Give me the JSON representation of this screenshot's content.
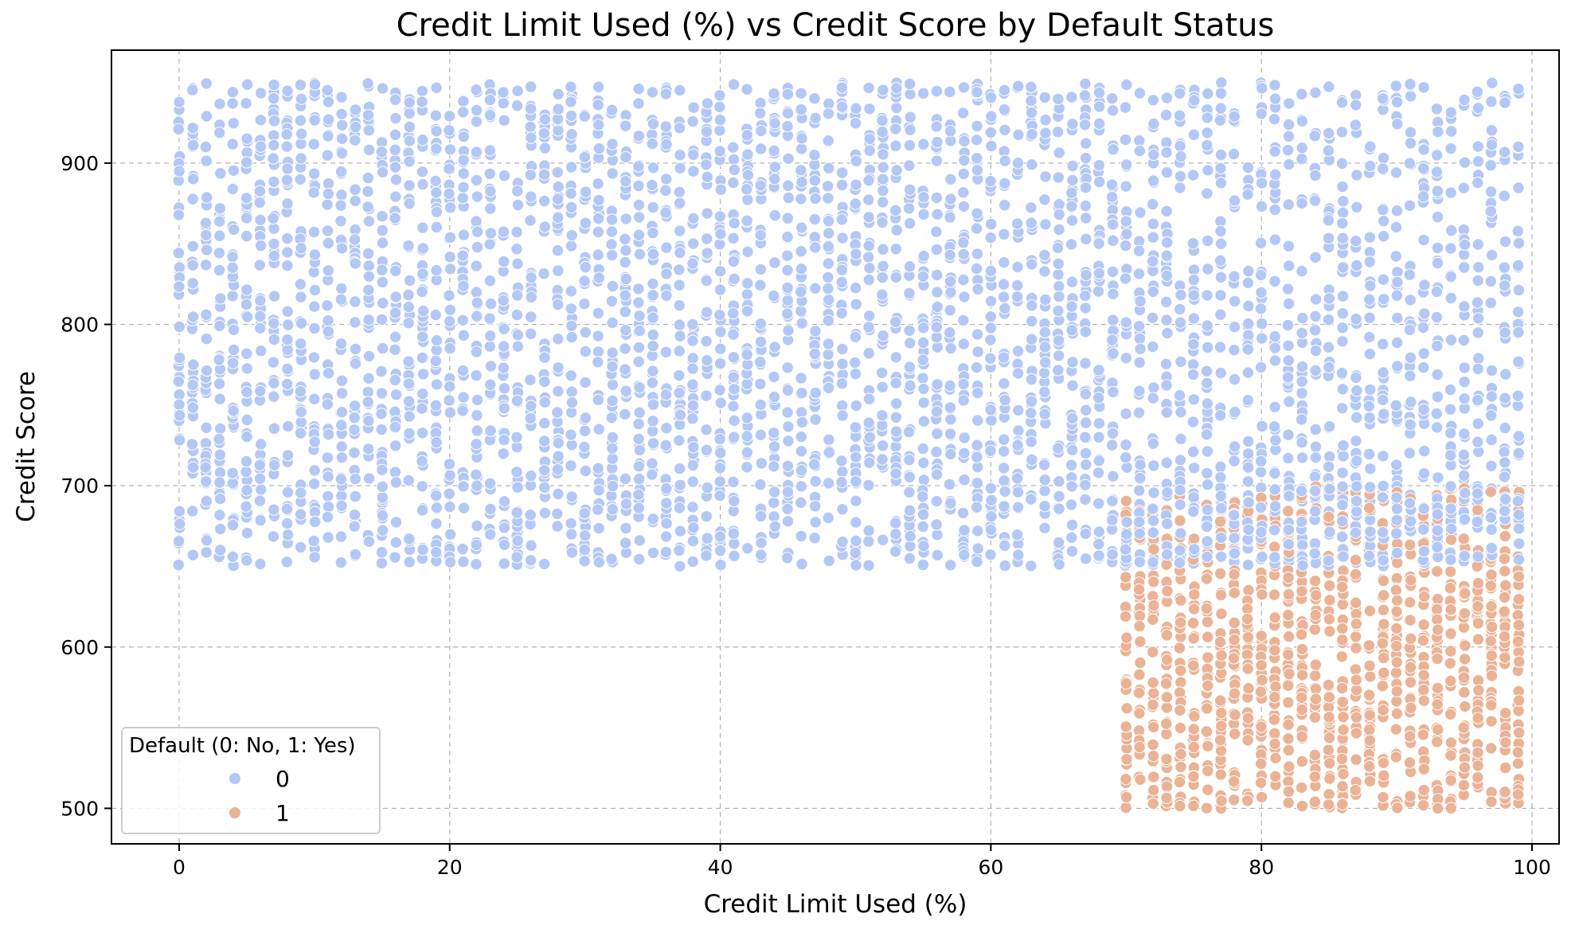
{
  "chart_data": {
    "type": "scatter",
    "title": "Credit Limit Used (%) vs Credit Score by Default Status",
    "xlabel": "Credit Limit Used (%)",
    "ylabel": "Credit Score",
    "xlim": [
      -5,
      102
    ],
    "ylim": [
      478,
      970
    ],
    "xticks": [
      0,
      20,
      40,
      60,
      80,
      100
    ],
    "yticks": [
      500,
      600,
      700,
      800,
      900
    ],
    "grid": true,
    "legend": {
      "title": "Default (0: No, 1: Yes)",
      "placement": "lower-left",
      "entries": [
        "0",
        "1"
      ]
    },
    "series": [
      {
        "name": "0",
        "color": "#b4c8f5",
        "description_region": "credit limit used 0 to 99, credit score 650 to 950; also credit limit used 70 to 99 with score 650 to 700 mixed with defaults",
        "x_range": [
          0,
          99
        ],
        "y_range": [
          650,
          950
        ]
      },
      {
        "name": "1",
        "color": "#eab396",
        "x_range": [
          70,
          99
        ],
        "y_range": [
          500,
          700
        ]
      }
    ]
  },
  "colors": {
    "series0": "#b4c8f5",
    "series1": "#eab396",
    "grid": "#b0b0b0",
    "axis": "#000000"
  }
}
